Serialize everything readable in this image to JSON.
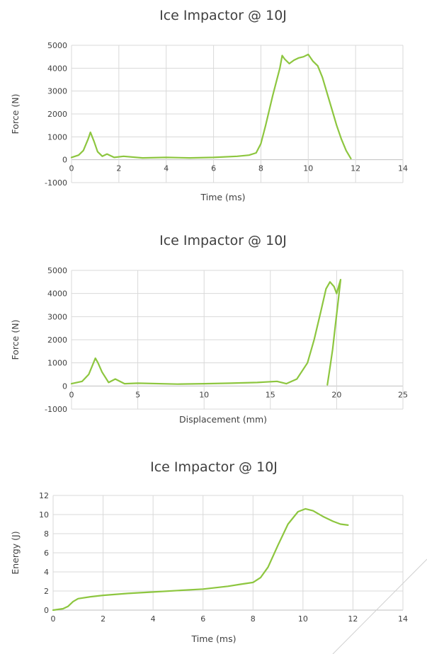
{
  "chart_data": [
    {
      "type": "line",
      "title": "Ice Impactor @ 10J",
      "xlabel": "Time (ms)",
      "ylabel": "Force (N)",
      "xlim": [
        0,
        14
      ],
      "ylim": [
        -1000,
        5000
      ],
      "xticks": [
        "0",
        "2",
        "4",
        "6",
        "8",
        "10",
        "12",
        "14"
      ],
      "yticks": [
        "-1000",
        "0",
        "1000",
        "2000",
        "3000",
        "4000",
        "5000"
      ],
      "grid": true,
      "color": "#8dc63f",
      "series": [
        {
          "x": [
            0,
            0.3,
            0.5,
            0.7,
            0.8,
            0.95,
            1.1,
            1.3,
            1.5,
            1.8,
            2.2,
            3,
            4,
            5,
            6,
            7,
            7.5,
            7.8,
            8.0,
            8.2,
            8.5,
            8.8,
            8.9,
            9.0,
            9.2,
            9.4,
            9.6,
            9.8,
            10.0,
            10.2,
            10.4,
            10.6,
            10.8,
            11.0,
            11.2,
            11.4,
            11.6,
            11.8
          ],
          "y": [
            100,
            200,
            400,
            900,
            1200,
            800,
            350,
            150,
            250,
            100,
            150,
            80,
            100,
            80,
            100,
            150,
            200,
            300,
            700,
            1500,
            2800,
            4000,
            4550,
            4400,
            4200,
            4350,
            4450,
            4500,
            4600,
            4300,
            4100,
            3600,
            2900,
            2200,
            1500,
            900,
            400,
            50
          ]
        }
      ]
    },
    {
      "type": "line",
      "title": "Ice Impactor @ 10J",
      "xlabel": "Displacement (mm)",
      "ylabel": "Force (N)",
      "xlim": [
        0,
        25
      ],
      "ylim": [
        -1000,
        5000
      ],
      "xticks": [
        "0",
        "5",
        "10",
        "15",
        "20",
        "25"
      ],
      "yticks": [
        "-1000",
        "0",
        "1000",
        "2000",
        "3000",
        "4000",
        "5000"
      ],
      "grid": true,
      "color": "#8dc63f",
      "series": [
        {
          "x": [
            0,
            0.8,
            1.3,
            1.8,
            2.0,
            2.3,
            2.8,
            3.3,
            4,
            5,
            8,
            10,
            12,
            14,
            15.5,
            16.2,
            17,
            17.8,
            18.3,
            18.8,
            19.2,
            19.5,
            19.8,
            20.0,
            20.2,
            20.3,
            20.1,
            19.9,
            19.7,
            19.5,
            19.3
          ],
          "y": [
            100,
            200,
            500,
            1200,
            1000,
            600,
            150,
            300,
            100,
            120,
            80,
            100,
            120,
            150,
            200,
            100,
            300,
            1000,
            2000,
            3200,
            4200,
            4500,
            4300,
            4000,
            4400,
            4600,
            3600,
            2600,
            1600,
            800,
            50
          ]
        }
      ]
    },
    {
      "type": "line",
      "title": "Ice Impactor @ 10J",
      "xlabel": "Time (ms)",
      "ylabel": "Energy (J)",
      "xlim": [
        0,
        14
      ],
      "ylim": [
        0,
        12
      ],
      "xticks": [
        "0",
        "2",
        "4",
        "6",
        "8",
        "10",
        "12",
        "14"
      ],
      "yticks": [
        "0",
        "2",
        "4",
        "6",
        "8",
        "10",
        "12"
      ],
      "grid": true,
      "color": "#8dc63f",
      "series": [
        {
          "x": [
            0,
            0.4,
            0.6,
            0.8,
            1.0,
            1.5,
            2,
            3,
            4,
            5,
            6,
            7,
            7.5,
            8,
            8.3,
            8.6,
            9.0,
            9.4,
            9.8,
            10.1,
            10.4,
            10.8,
            11.2,
            11.5,
            11.8
          ],
          "y": [
            0,
            0.15,
            0.4,
            0.9,
            1.2,
            1.4,
            1.55,
            1.75,
            1.9,
            2.05,
            2.2,
            2.5,
            2.7,
            2.9,
            3.4,
            4.5,
            6.8,
            9.0,
            10.3,
            10.6,
            10.4,
            9.8,
            9.3,
            9.0,
            8.9
          ]
        }
      ]
    }
  ]
}
